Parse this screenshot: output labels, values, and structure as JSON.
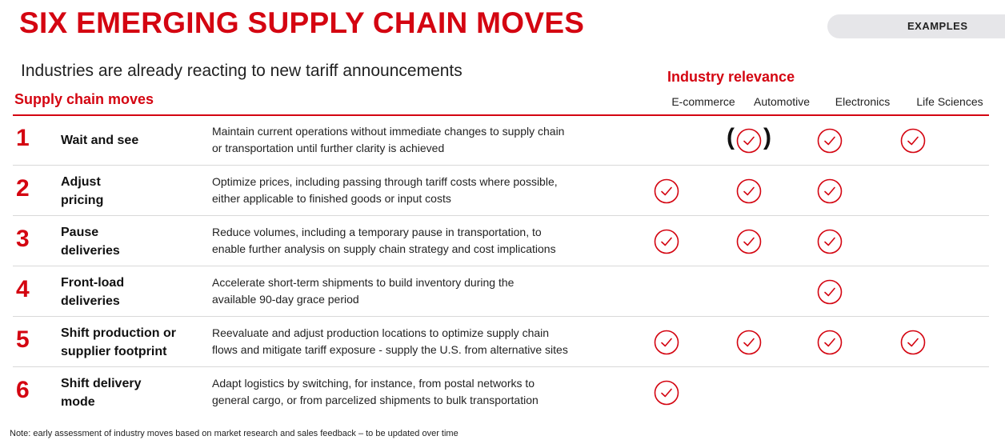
{
  "title": "SIX EMERGING SUPPLY CHAIN MOVES",
  "examples_label": "EXAMPLES",
  "subtitle": "Industries are already reacting to new tariff announcements",
  "moves_header": "Supply chain moves",
  "relevance_header": "Industry relevance",
  "industries": [
    "E-commerce",
    "Automotive",
    "Electronics",
    "Life Sciences"
  ],
  "paren_open": "(",
  "paren_close": ")",
  "rows": [
    {
      "number": "1",
      "move_lines": [
        "Wait and see"
      ],
      "description_lines": [
        "Maintain current operations without immediate changes to supply chain",
        "or transportation until further clarity is achieved"
      ],
      "relevance": [
        false,
        "partial",
        true,
        true
      ]
    },
    {
      "number": "2",
      "move_lines": [
        "Adjust",
        "pricing"
      ],
      "description_lines": [
        "Optimize prices, including passing through tariff costs where possible,",
        "either applicable to finished goods or input costs"
      ],
      "relevance": [
        true,
        true,
        true,
        false
      ]
    },
    {
      "number": "3",
      "move_lines": [
        "Pause",
        "deliveries"
      ],
      "description_lines": [
        "Reduce volumes, including a temporary pause in transportation, to",
        "enable further analysis on supply chain strategy and cost implications"
      ],
      "relevance": [
        true,
        true,
        true,
        false
      ]
    },
    {
      "number": "4",
      "move_lines": [
        "Front-load",
        "deliveries"
      ],
      "description_lines": [
        "Accelerate short-term shipments to build inventory during the",
        "available 90-day grace period"
      ],
      "relevance": [
        false,
        false,
        true,
        false
      ]
    },
    {
      "number": "5",
      "move_lines": [
        "Shift production or",
        "supplier footprint"
      ],
      "description_lines": [
        "Reevaluate and adjust production locations to optimize supply chain",
        "flows and mitigate tariff exposure - supply the U.S. from alternative sites"
      ],
      "relevance": [
        true,
        true,
        true,
        true
      ]
    },
    {
      "number": "6",
      "move_lines": [
        "Shift delivery",
        "mode"
      ],
      "description_lines": [
        "Adapt logistics by switching, for instance, from postal networks to",
        "general cargo, or from parcelized shipments to bulk transportation"
      ],
      "relevance": [
        true,
        false,
        false,
        false
      ]
    }
  ],
  "note": "Note: early assessment of industry moves based on market research and sales feedback – to be updated over time",
  "colors": {
    "accent": "#d40511",
    "pill": "#e6e6e9",
    "rule": "#d9d9d9"
  },
  "icons": {
    "check": "check-circle-icon"
  }
}
